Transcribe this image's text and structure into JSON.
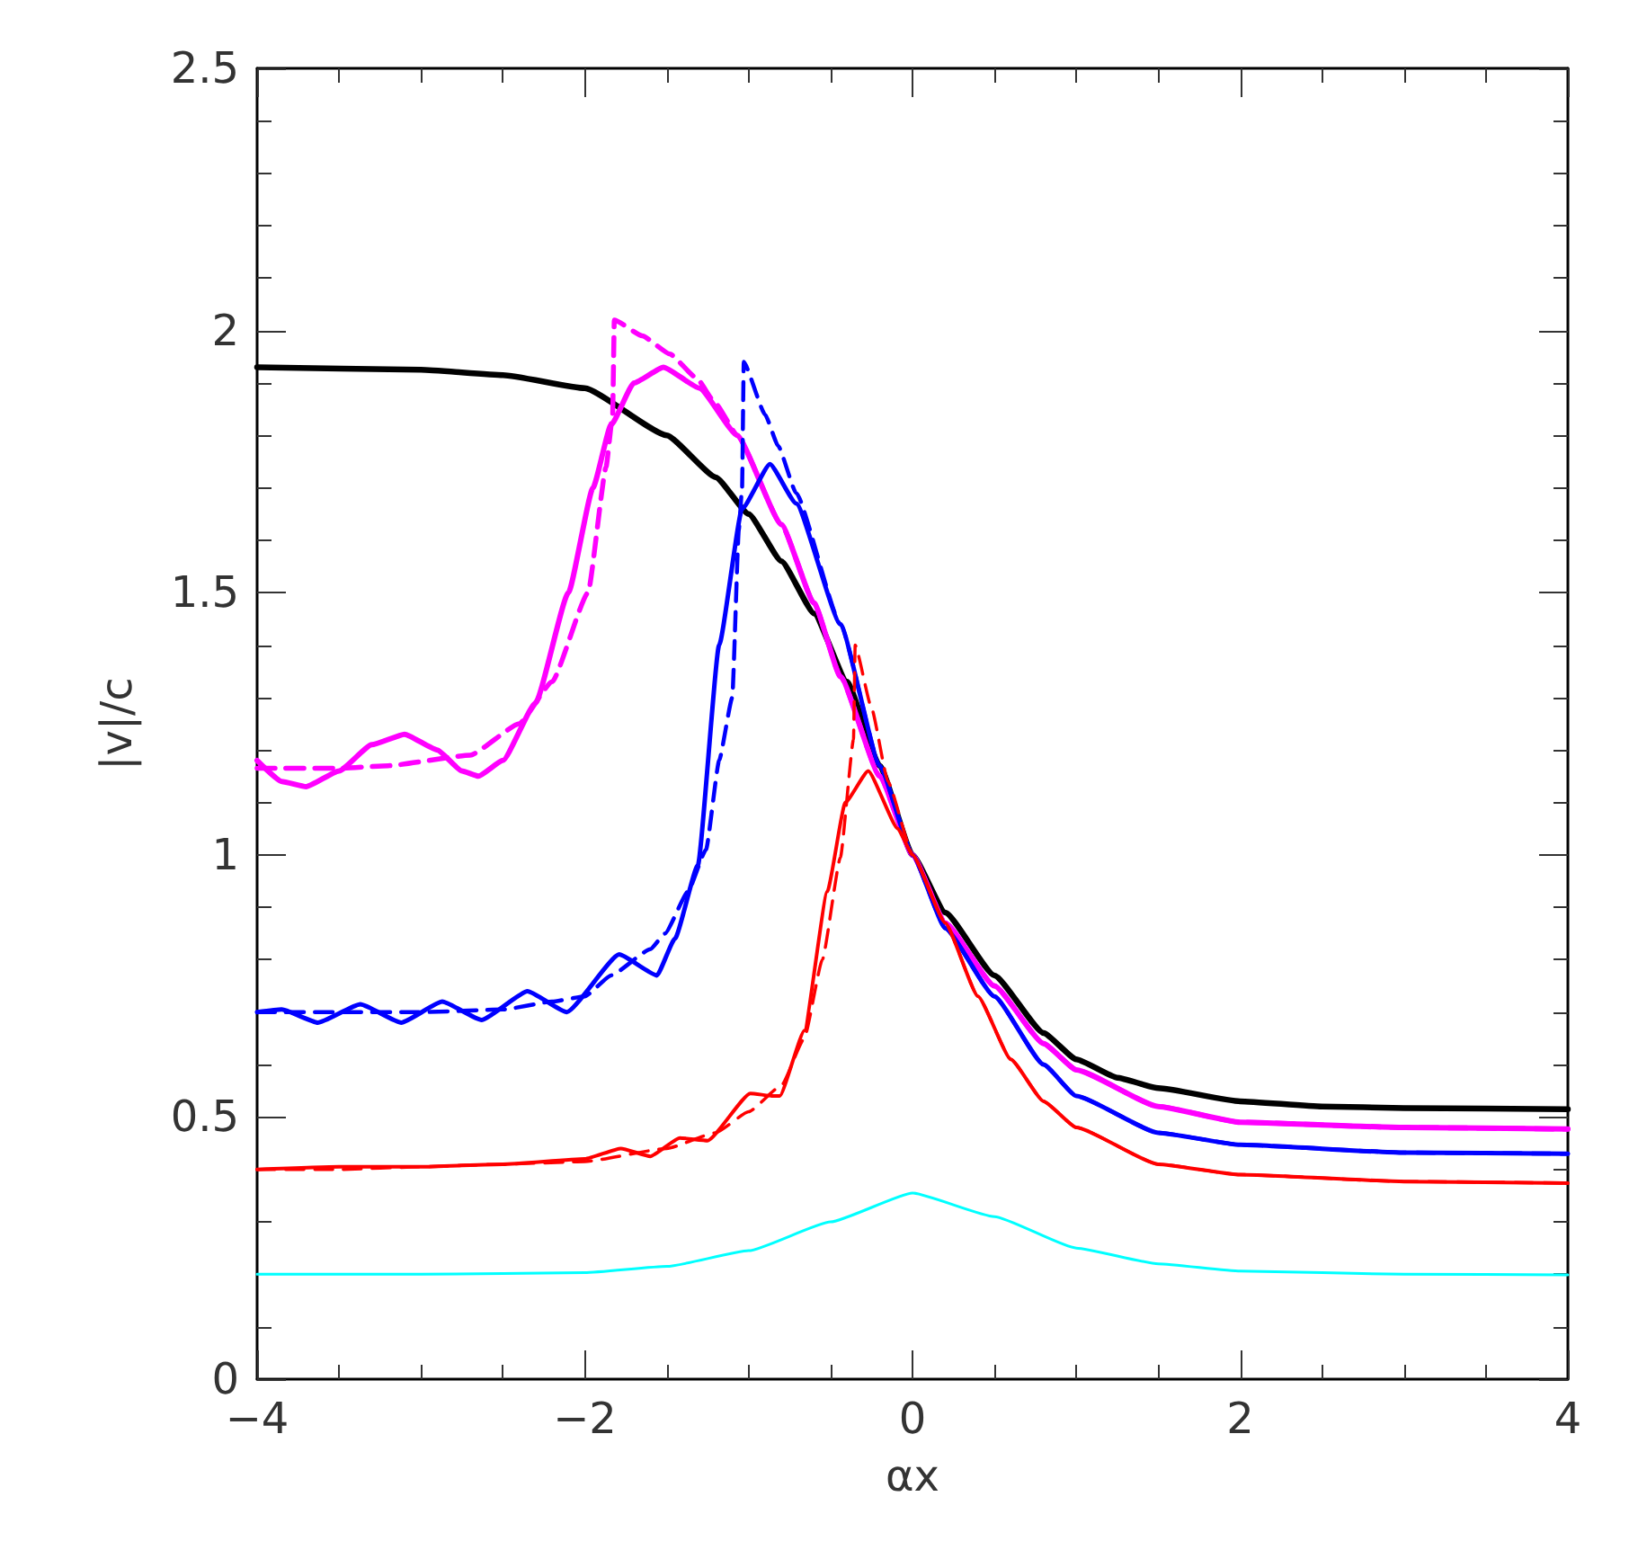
{
  "chart_data": {
    "type": "line",
    "xlabel": "αx",
    "ylabel": "|v|/c",
    "xlim": [
      -4,
      4
    ],
    "xticks": [
      {
        "value": -4,
        "label": "−4"
      },
      {
        "value": -3.5,
        "label": null
      },
      {
        "value": -3,
        "label": null
      },
      {
        "value": -2.5,
        "label": null
      },
      {
        "value": -2,
        "label": "−2"
      },
      {
        "value": -1.5,
        "label": null
      },
      {
        "value": -1,
        "label": null
      },
      {
        "value": -0.5,
        "label": null
      },
      0,
      {
        "value": 0.5,
        "label": null
      },
      {
        "value": 1,
        "label": null
      },
      {
        "value": 1.5,
        "label": null
      },
      2,
      {
        "value": 2.5,
        "label": null
      },
      {
        "value": 3,
        "label": null
      },
      {
        "value": 3.5,
        "label": null
      },
      4
    ],
    "ylim": [
      0,
      2.5
    ],
    "yticks": [
      0,
      {
        "value": 0.1,
        "label": null
      },
      {
        "value": 0.2,
        "label": null
      },
      {
        "value": 0.3,
        "label": null
      },
      {
        "value": 0.4,
        "label": null
      },
      0.5,
      {
        "value": 0.6,
        "label": null
      },
      {
        "value": 0.7,
        "label": null
      },
      {
        "value": 0.8,
        "label": null
      },
      {
        "value": 0.9,
        "label": null
      },
      1,
      {
        "value": 1.1,
        "label": null
      },
      {
        "value": 1.2,
        "label": null
      },
      {
        "value": 1.3,
        "label": null
      },
      {
        "value": 1.4,
        "label": null
      },
      1.5,
      {
        "value": 1.6,
        "label": null
      },
      {
        "value": 1.7,
        "label": null
      },
      {
        "value": 1.8,
        "label": null
      },
      {
        "value": 1.9,
        "label": null
      },
      2,
      {
        "value": 2.1,
        "label": null
      },
      {
        "value": 2.2,
        "label": null
      },
      {
        "value": 2.3,
        "label": null
      },
      {
        "value": 2.4,
        "label": null
      },
      2.5
    ],
    "grid": false,
    "series": [
      {
        "color": "#000000",
        "line_style": "solid",
        "x": [
          -4,
          -3,
          -2.5,
          -2,
          -1.5,
          -1.2,
          -1,
          -0.8,
          -0.6,
          -0.4,
          -0.2,
          0,
          0.2,
          0.5,
          0.8,
          1,
          1.25,
          1.5,
          2,
          2.5,
          3,
          4
        ],
        "values": [
          1.93,
          1.925,
          1.915,
          1.89,
          1.8,
          1.72,
          1.65,
          1.56,
          1.46,
          1.33,
          1.17,
          1.0,
          0.89,
          0.77,
          0.66,
          0.61,
          0.575,
          0.555,
          0.53,
          0.52,
          0.517,
          0.515
        ]
      },
      {
        "color": "#ff00ff",
        "line_style": "solid",
        "x": [
          -4,
          -3.85,
          -3.7,
          -3.5,
          -3.3,
          -3.1,
          -2.9,
          -2.75,
          -2.65,
          -2.5,
          -2.3,
          -2.1,
          -1.95,
          -1.84,
          -1.7,
          -1.52,
          -1.3,
          -1.07,
          -0.8,
          -0.6,
          -0.44,
          -0.2,
          0,
          0.2,
          0.5,
          0.8,
          1,
          1.5,
          2,
          3,
          4
        ],
        "values": [
          1.18,
          1.14,
          1.13,
          1.16,
          1.21,
          1.23,
          1.2,
          1.16,
          1.15,
          1.18,
          1.29,
          1.5,
          1.7,
          1.82,
          1.9,
          1.93,
          1.89,
          1.8,
          1.63,
          1.48,
          1.34,
          1.15,
          1.0,
          0.87,
          0.75,
          0.64,
          0.59,
          0.52,
          0.49,
          0.48,
          0.477
        ]
      },
      {
        "color": "#ff00ff",
        "line_style": "dashed",
        "x": [
          -4,
          -3.5,
          -3.2,
          -2.7,
          -2.4,
          -2.2,
          -1.98,
          -1.87,
          -1.83,
          -1.82,
          -1.65,
          -1.48,
          -1.32,
          -1.2,
          -1.07,
          -0.8,
          -0.6,
          -0.44,
          -0.2,
          0,
          0.2,
          0.5,
          0.8,
          1,
          1.5,
          2,
          3,
          4
        ],
        "values": [
          1.165,
          1.165,
          1.17,
          1.19,
          1.25,
          1.33,
          1.5,
          1.74,
          1.84,
          2.02,
          1.99,
          1.955,
          1.91,
          1.86,
          1.8,
          1.63,
          1.48,
          1.34,
          1.15,
          1.0,
          0.87,
          0.75,
          0.64,
          0.59,
          0.52,
          0.49,
          0.48,
          0.477
        ]
      },
      {
        "color": "#0000ff",
        "line_style": "solid",
        "x": [
          -4,
          -3.85,
          -3.63,
          -3.37,
          -3.12,
          -2.87,
          -2.63,
          -2.35,
          -2.11,
          -1.79,
          -1.56,
          -1.45,
          -1.31,
          -1.18,
          -1.04,
          -0.87,
          -0.71,
          -0.44,
          -0.2,
          0,
          0.2,
          0.5,
          0.8,
          1,
          1.5,
          2,
          3,
          4
        ],
        "values": [
          0.7,
          0.705,
          0.68,
          0.715,
          0.68,
          0.72,
          0.685,
          0.74,
          0.7,
          0.81,
          0.77,
          0.84,
          0.98,
          1.4,
          1.66,
          1.745,
          1.67,
          1.44,
          1.17,
          1.0,
          0.86,
          0.73,
          0.6,
          0.54,
          0.47,
          0.447,
          0.432,
          0.43
        ]
      },
      {
        "color": "#0000ff",
        "line_style": "dashed",
        "x": [
          -4,
          -3.5,
          -3,
          -2.5,
          -2.2,
          -2,
          -1.84,
          -1.6,
          -1.51,
          -1.37,
          -1.26,
          -1.18,
          -1.1,
          -1.06,
          -1.04,
          -1.03,
          -0.9,
          -0.82,
          -0.71,
          -0.44,
          -0.2,
          0,
          0.2,
          0.5,
          0.8,
          1,
          1.5,
          2,
          3,
          4
        ],
        "values": [
          0.7,
          0.7,
          0.7,
          0.705,
          0.72,
          0.73,
          0.77,
          0.82,
          0.85,
          0.93,
          1.01,
          1.18,
          1.3,
          1.62,
          1.7,
          1.94,
          1.84,
          1.78,
          1.69,
          1.44,
          1.17,
          1.0,
          0.86,
          0.73,
          0.6,
          0.54,
          0.47,
          0.447,
          0.432,
          0.43
        ]
      },
      {
        "color": "#ff0000",
        "line_style": "solid",
        "x": [
          -4,
          -3.5,
          -3,
          -2.5,
          -2,
          -1.78,
          -1.6,
          -1.42,
          -1.25,
          -0.99,
          -0.85,
          -0.81,
          -0.66,
          -0.52,
          -0.41,
          -0.27,
          -0.09,
          0,
          0.2,
          0.4,
          0.6,
          0.8,
          1,
          1.5,
          2,
          3,
          4
        ],
        "values": [
          0.4,
          0.405,
          0.405,
          0.41,
          0.42,
          0.44,
          0.425,
          0.46,
          0.455,
          0.545,
          0.54,
          0.54,
          0.665,
          0.93,
          1.1,
          1.16,
          1.05,
          1.0,
          0.87,
          0.73,
          0.61,
          0.53,
          0.48,
          0.41,
          0.39,
          0.377,
          0.374
        ]
      },
      {
        "color": "#ff0000",
        "line_style": "dashed",
        "x": [
          -4,
          -3.5,
          -3,
          -2.5,
          -2,
          -1.5,
          -1.2,
          -1,
          -0.8,
          -0.66,
          -0.55,
          -0.44,
          -0.36,
          -0.35,
          -0.25,
          -0.15,
          0,
          0.2,
          0.4,
          0.6,
          0.8,
          1,
          1.5,
          2,
          3,
          4
        ],
        "values": [
          0.4,
          0.4,
          0.405,
          0.41,
          0.415,
          0.44,
          0.47,
          0.51,
          0.56,
          0.65,
          0.8,
          0.995,
          1.22,
          1.4,
          1.28,
          1.14,
          1.0,
          0.87,
          0.73,
          0.61,
          0.53,
          0.48,
          0.41,
          0.39,
          0.377,
          0.374
        ]
      },
      {
        "color": "#00ffff",
        "line_style": "solid",
        "x": [
          -4,
          -3,
          -2,
          -1.5,
          -1,
          -0.5,
          0,
          0.5,
          1,
          1.5,
          2,
          3,
          4
        ],
        "values": [
          0.2,
          0.2,
          0.203,
          0.215,
          0.245,
          0.3,
          0.355,
          0.31,
          0.25,
          0.22,
          0.206,
          0.2,
          0.199
        ]
      }
    ]
  }
}
